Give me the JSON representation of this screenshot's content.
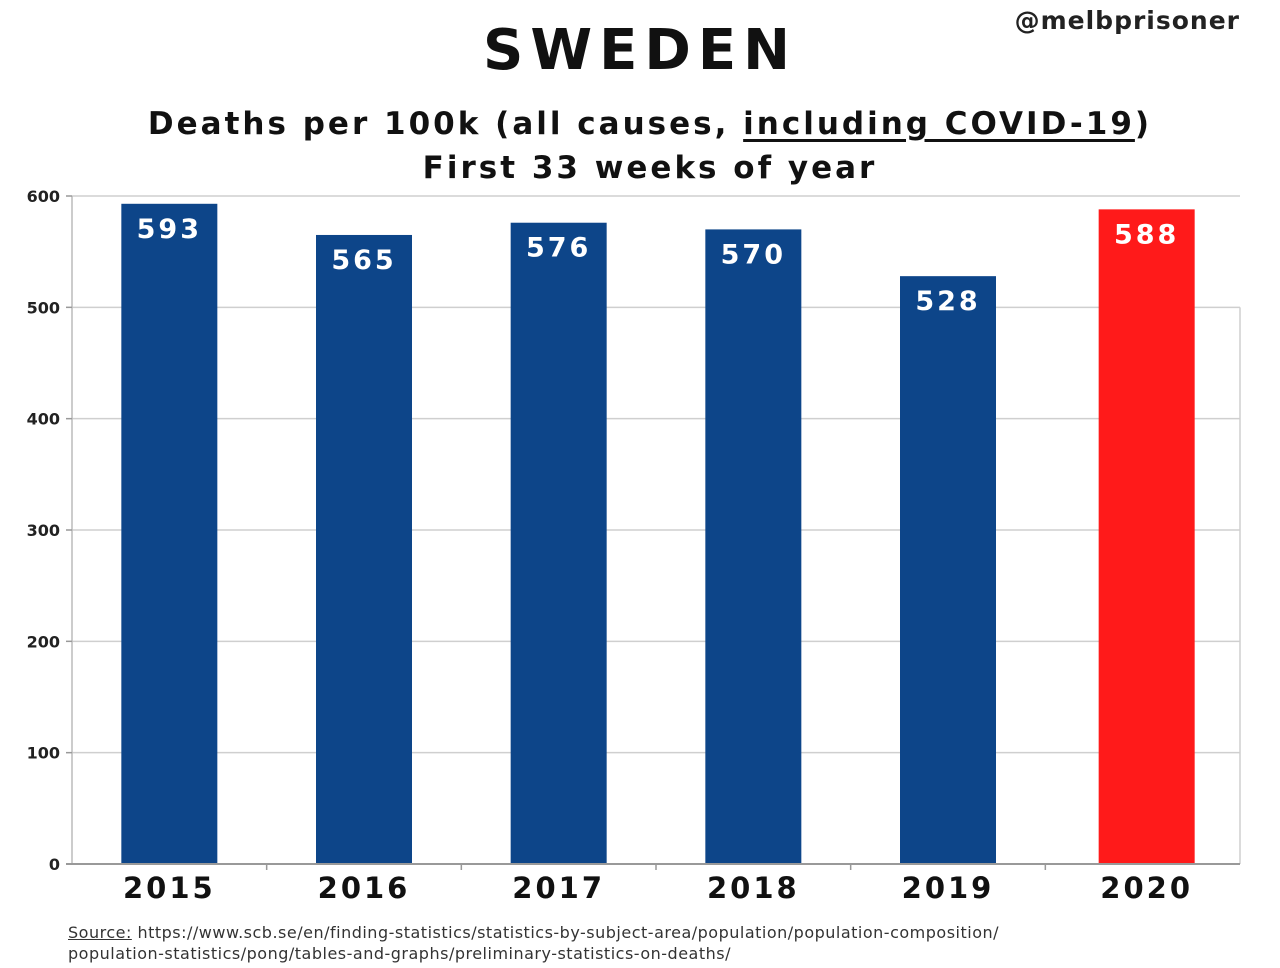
{
  "header": {
    "handle": "@melbprisoner"
  },
  "chart_data": {
    "type": "bar",
    "title": "SWEDEN",
    "subtitle_part1": "Deaths per 100k (all causes, ",
    "subtitle_underlined": "including COVID-19",
    "subtitle_part2": ")",
    "subtitle_line2": "First 33 weeks of year",
    "categories": [
      "2015",
      "2016",
      "2017",
      "2018",
      "2019",
      "2020"
    ],
    "values": [
      593,
      565,
      576,
      570,
      528,
      588
    ],
    "value_labels": [
      "593",
      "565",
      "576",
      "570",
      "528",
      "588"
    ],
    "bar_colors": [
      "#0d4589",
      "#0d4589",
      "#0d4589",
      "#0d4589",
      "#0d4589",
      "#ff1a1a"
    ],
    "ylim": [
      0,
      600
    ],
    "yticks": [
      0,
      100,
      200,
      300,
      400,
      500,
      600
    ],
    "ytick_labels": [
      "0",
      "100",
      "200",
      "300",
      "400",
      "500",
      "600"
    ],
    "xlabel": "",
    "ylabel": "",
    "grid": true
  },
  "footer": {
    "source_label": "Source:",
    "source_line1": "https://www.scb.se/en/finding-statistics/statistics-by-subject-area/population/population-composition/",
    "source_line2": "population-statistics/pong/tables-and-graphs/preliminary-statistics-on-deaths/"
  }
}
